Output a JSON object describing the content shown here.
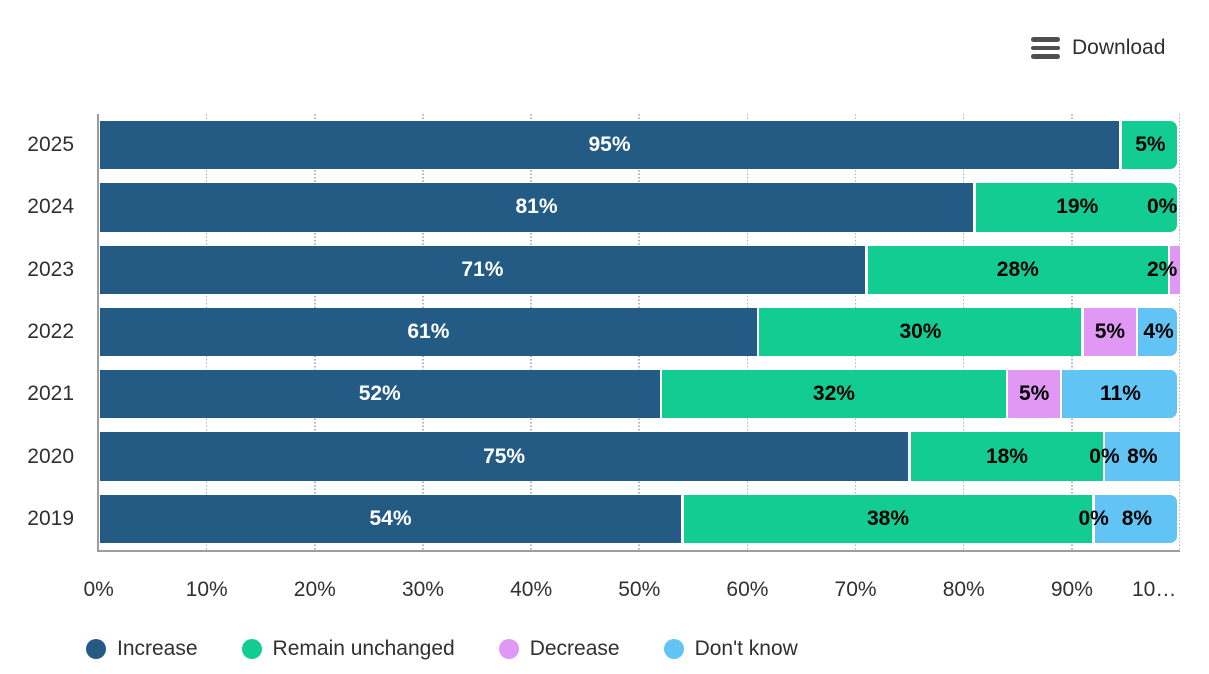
{
  "toolbar": {
    "download_label": "Download",
    "menu_icon": "hamburger-icon"
  },
  "chart_data": {
    "type": "bar",
    "stacked": true,
    "orientation": "horizontal",
    "title": "",
    "xlabel": "",
    "ylabel": "",
    "categories": [
      "2025",
      "2024",
      "2023",
      "2022",
      "2021",
      "2020",
      "2019"
    ],
    "series": [
      {
        "name": "Increase",
        "color": "#235b85",
        "label_color": "#ffffff",
        "values": [
          95,
          81,
          71,
          61,
          52,
          75,
          54
        ]
      },
      {
        "name": "Remain unchanged",
        "color": "#13cc92",
        "label_color": "#000000",
        "values": [
          5,
          19,
          28,
          30,
          32,
          18,
          38
        ]
      },
      {
        "name": "Decrease",
        "color": "#e198f5",
        "label_color": "#000000",
        "values": [
          null,
          0,
          2,
          5,
          5,
          0,
          0
        ]
      },
      {
        "name": "Don't know",
        "color": "#62c4f5",
        "label_color": "#000000",
        "values": [
          null,
          null,
          null,
          4,
          11,
          8,
          8
        ]
      }
    ],
    "data_label_suffix": "%",
    "x_tick_labels": [
      "0%",
      "10%",
      "20%",
      "30%",
      "40%",
      "50%",
      "60%",
      "70%",
      "80%",
      "90%",
      "10…"
    ],
    "xlim": [
      0,
      100
    ],
    "grid": {
      "style": "dotted",
      "color": "#b5b5b5",
      "direction": "vertical"
    },
    "axis_line_color": "#9d9d9d",
    "legend_position": "bottom-left",
    "plot_adjustments": {
      "2025": {
        "Increase": 94.5,
        "Remain unchanged": 5.5
      }
    }
  }
}
